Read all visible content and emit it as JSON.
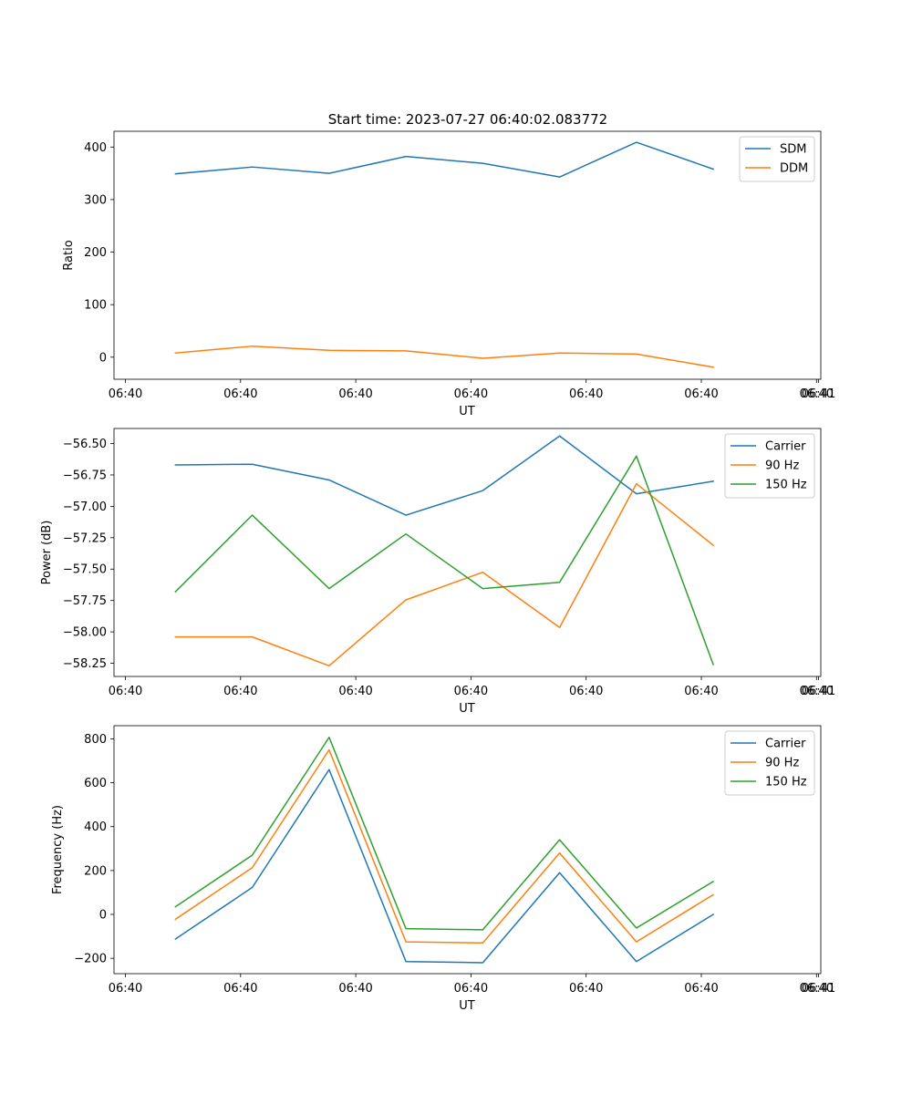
{
  "title": "Start time: 2023-07-27 06:40:02.083772",
  "chart_data": [
    {
      "type": "line",
      "title": "Start time: 2023-07-27 06:40:02.083772",
      "xlabel": "UT",
      "ylabel": "Ratio",
      "x_tick_labels": [
        "06:40",
        "06:40",
        "06:40",
        "06:40",
        "06:40",
        "06:40",
        "06:40",
        "06:41"
      ],
      "y_ticks": [
        0,
        100,
        200,
        300,
        400
      ],
      "y_tick_labels": [
        "0",
        "100",
        "200",
        "300",
        "400"
      ],
      "ylim": [
        -42,
        430
      ],
      "x": [
        1,
        2,
        3,
        4,
        5,
        6,
        7,
        8
      ],
      "xlim": [
        0.2,
        9.4
      ],
      "legend_position": "top-right",
      "grid": false,
      "series": [
        {
          "name": "SDM",
          "color": "#1f77b4",
          "values": [
            349,
            362,
            350,
            382,
            369,
            343,
            409,
            358
          ]
        },
        {
          "name": "DDM",
          "color": "#ff7f0e",
          "values": [
            8,
            21,
            13,
            12,
            -2,
            8,
            6,
            -19
          ]
        }
      ]
    },
    {
      "type": "line",
      "title": "",
      "xlabel": "UT",
      "ylabel": "Power (dB)",
      "x_tick_labels": [
        "06:40",
        "06:40",
        "06:40",
        "06:40",
        "06:40",
        "06:40",
        "06:40",
        "06:41"
      ],
      "y_ticks": [
        -58.25,
        -58.0,
        -57.75,
        -57.5,
        -57.25,
        -57.0,
        -56.75,
        -56.5
      ],
      "y_tick_labels": [
        "−58.25",
        "−58.00",
        "−57.75",
        "−57.50",
        "−57.25",
        "−57.00",
        "−56.75",
        "−56.50"
      ],
      "ylim": [
        -58.355,
        -56.38
      ],
      "x": [
        1,
        2,
        3,
        4,
        5,
        6,
        7,
        8
      ],
      "xlim": [
        0.2,
        9.4
      ],
      "legend_position": "top-right",
      "grid": false,
      "series": [
        {
          "name": "Carrier",
          "color": "#1f77b4",
          "values": [
            -56.67,
            -56.665,
            -56.79,
            -57.07,
            -56.875,
            -56.44,
            -56.9,
            -56.8
          ]
        },
        {
          "name": "90 Hz",
          "color": "#ff7f0e",
          "values": [
            -58.04,
            -58.04,
            -58.27,
            -57.745,
            -57.525,
            -57.965,
            -56.82,
            -57.31
          ]
        },
        {
          "name": "150 Hz",
          "color": "#2ca02c",
          "values": [
            -57.68,
            -57.07,
            -57.655,
            -57.22,
            -57.655,
            -57.605,
            -56.6,
            -58.26
          ]
        }
      ]
    },
    {
      "type": "line",
      "title": "",
      "xlabel": "UT",
      "ylabel": "Frequency (Hz)",
      "x_tick_labels": [
        "06:40",
        "06:40",
        "06:40",
        "06:40",
        "06:40",
        "06:40",
        "06:40",
        "06:41"
      ],
      "y_ticks": [
        -200,
        0,
        200,
        400,
        600,
        800
      ],
      "y_tick_labels": [
        "−200",
        "0",
        "200",
        "400",
        "600",
        "800"
      ],
      "ylim": [
        -270,
        860
      ],
      "x": [
        1,
        2,
        3,
        4,
        5,
        6,
        7,
        8
      ],
      "xlim": [
        0.2,
        9.4
      ],
      "legend_position": "top-right",
      "grid": false,
      "series": [
        {
          "name": "Carrier",
          "color": "#1f77b4",
          "values": [
            -112,
            123,
            660,
            -215,
            -220,
            190,
            -215,
            0
          ]
        },
        {
          "name": "90 Hz",
          "color": "#ff7f0e",
          "values": [
            -22,
            213,
            750,
            -125,
            -130,
            280,
            -125,
            90
          ]
        },
        {
          "name": "150 Hz",
          "color": "#2ca02c",
          "values": [
            35,
            270,
            807,
            -65,
            -70,
            340,
            -62,
            150
          ]
        }
      ]
    }
  ]
}
